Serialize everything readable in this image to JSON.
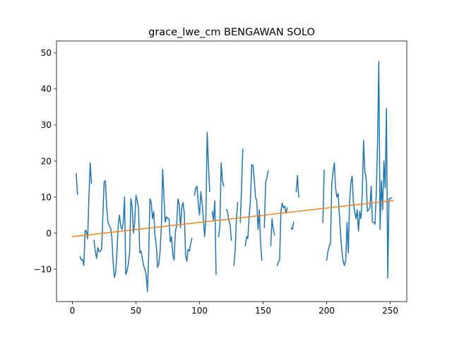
{
  "chart_data": {
    "type": "line",
    "title": "grace_lwe_cm BENGAWAN SOLO",
    "xlabel": "",
    "ylabel": "",
    "xlim": [
      -12.5,
      263
    ],
    "ylim": [
      -19,
      53.3
    ],
    "xticks": [
      0,
      50,
      100,
      150,
      200,
      250
    ],
    "yticks": [
      -10,
      0,
      10,
      20,
      30,
      40,
      50
    ],
    "grid": false,
    "legend": "none",
    "series": [
      {
        "color": "#1f77b4",
        "points": [
          [
            3,
            16.5
          ],
          [
            4,
            10.8
          ],
          null,
          [
            6,
            -6.5
          ],
          [
            7,
            -7.5
          ],
          [
            8,
            -7.3
          ],
          [
            9,
            -9
          ],
          [
            10,
            0.8
          ],
          [
            11,
            0.5
          ],
          [
            12,
            -1.5
          ],
          [
            13,
            10
          ],
          [
            14,
            19.5
          ],
          [
            15,
            13.8
          ],
          null,
          [
            17,
            -2
          ],
          [
            18,
            -5
          ],
          [
            19,
            -7
          ],
          [
            20,
            -4
          ],
          [
            21,
            -5.2
          ],
          [
            22,
            -5
          ],
          [
            23,
            -4.5
          ],
          [
            24,
            5
          ],
          [
            25,
            14.3
          ],
          [
            26,
            14.5
          ],
          [
            27,
            7
          ],
          [
            28,
            3
          ],
          [
            29,
            2
          ],
          [
            30,
            1.5
          ],
          [
            31,
            -1
          ],
          [
            32,
            -8
          ],
          [
            33,
            -12.3
          ],
          [
            34,
            -11
          ],
          [
            35,
            -5.5
          ],
          [
            36,
            2
          ],
          [
            37,
            5
          ],
          [
            38,
            2
          ],
          [
            39,
            1
          ],
          [
            40,
            3
          ],
          [
            41,
            10
          ],
          [
            42,
            -11.5
          ],
          [
            43,
            -10.5
          ],
          [
            44,
            -8.5
          ],
          [
            45,
            -5.5
          ],
          [
            46,
            9.5
          ],
          [
            47,
            7.5
          ],
          [
            48,
            0
          ],
          [
            49,
            3
          ],
          [
            50,
            10.5
          ],
          [
            51,
            9
          ],
          [
            52,
            7
          ],
          [
            53,
            -5.5
          ],
          [
            54,
            -5
          ],
          [
            55,
            -7
          ],
          [
            56,
            -9
          ],
          [
            57,
            -10
          ],
          [
            58,
            -11.5
          ],
          [
            59,
            -16.2
          ],
          [
            60,
            -6
          ],
          [
            61,
            9.5
          ],
          [
            62,
            8.5
          ],
          [
            63,
            4
          ],
          [
            64,
            6
          ],
          [
            65,
            -1
          ],
          [
            66,
            -3.5
          ],
          [
            67,
            -9.5
          ],
          [
            68,
            -8.5
          ],
          [
            69,
            -5
          ],
          [
            70,
            2
          ],
          [
            71,
            17.7
          ],
          [
            72,
            10
          ],
          [
            73,
            3
          ],
          [
            74,
            4.5
          ],
          [
            75,
            4
          ],
          [
            76,
            4
          ],
          [
            77,
            -2.5
          ],
          [
            78,
            -1
          ],
          [
            79,
            -6
          ],
          [
            80,
            -7.5
          ],
          [
            81,
            0.5
          ],
          [
            82,
            2
          ],
          [
            83,
            9.5
          ],
          [
            84,
            8
          ],
          [
            85,
            1.5
          ],
          [
            86,
            7
          ],
          [
            87,
            8.5
          ],
          [
            88,
            5.5
          ],
          [
            89,
            -6
          ],
          [
            90,
            -7.8
          ],
          [
            91,
            -4.5
          ],
          [
            92,
            -5
          ],
          [
            93,
            -3
          ],
          [
            94,
            -1.5
          ],
          null,
          [
            96,
            10.5
          ],
          [
            97,
            12.5
          ],
          [
            98,
            13
          ],
          [
            99,
            8
          ],
          [
            100,
            5
          ],
          [
            101,
            11.5
          ],
          [
            102,
            8.5
          ],
          [
            103,
            4
          ],
          [
            104,
            -1
          ],
          [
            105,
            4
          ],
          [
            106,
            28
          ],
          [
            107,
            19
          ],
          [
            108,
            11.5
          ],
          null,
          [
            110,
            6
          ],
          [
            111,
            3.5
          ],
          [
            112,
            9
          ],
          [
            113,
            -11.5
          ],
          null,
          [
            115,
            -1
          ],
          [
            116,
            2
          ],
          [
            117,
            19.5
          ],
          [
            118,
            14.5
          ],
          [
            119,
            13
          ],
          null,
          [
            121,
            6.5
          ],
          [
            122,
            6
          ],
          [
            123,
            3.5
          ],
          [
            124,
            2.5
          ],
          [
            125,
            -2
          ],
          null,
          [
            127,
            -9
          ],
          [
            128,
            -5
          ],
          [
            129,
            4
          ],
          [
            130,
            8.5
          ],
          null,
          [
            132,
            3
          ],
          [
            133,
            12
          ],
          [
            134,
            23.3
          ],
          null,
          [
            136,
            -3.5
          ],
          [
            137,
            -1
          ],
          [
            138,
            -1.5
          ],
          [
            139,
            4.5
          ],
          [
            140,
            9
          ],
          [
            141,
            19
          ],
          [
            142,
            18.8
          ],
          [
            143,
            15
          ],
          [
            144,
            10
          ],
          [
            145,
            9
          ],
          [
            146,
            1
          ],
          [
            147,
            6.5
          ],
          [
            148,
            -3
          ],
          [
            149,
            -7.5
          ],
          null,
          [
            151,
            1.5
          ],
          [
            152,
            14
          ],
          [
            153,
            15.5
          ],
          [
            154,
            17.3
          ],
          null,
          [
            156,
            -3.5
          ],
          [
            157,
            4
          ],
          [
            158,
            1
          ],
          [
            159,
            -0.5
          ],
          null,
          [
            161,
            -9
          ],
          [
            162,
            -8
          ],
          [
            163,
            -7.5
          ],
          [
            164,
            6
          ],
          [
            165,
            8.3
          ],
          [
            166,
            7
          ],
          [
            167,
            7.5
          ],
          [
            168,
            5.5
          ],
          [
            169,
            7
          ],
          null,
          [
            172,
            1.5
          ],
          [
            173,
            1
          ],
          [
            174,
            3
          ],
          null,
          [
            176,
            11.5
          ],
          [
            177,
            16
          ],
          [
            178,
            10
          ],
          null,
          [
            197,
            3
          ],
          [
            198,
            17.5
          ],
          null,
          [
            200,
            -7.5
          ],
          [
            201,
            -5
          ],
          [
            202,
            -3.5
          ],
          [
            203,
            -3
          ],
          [
            204,
            14
          ],
          [
            205,
            17
          ],
          [
            206,
            19.5
          ],
          [
            207,
            12.5
          ],
          [
            208,
            10
          ],
          [
            209,
            11
          ],
          [
            210,
            5
          ],
          [
            211,
            -1
          ],
          [
            212,
            -5
          ],
          [
            213,
            -8
          ],
          [
            214,
            -9
          ],
          [
            215,
            -7.5
          ],
          [
            216,
            3
          ],
          [
            217,
            -5.5
          ],
          [
            218,
            8.5
          ],
          [
            219,
            14
          ],
          [
            220,
            15.8
          ],
          [
            221,
            8.5
          ],
          [
            222,
            6
          ],
          [
            223,
            4
          ],
          [
            224,
            6.5
          ],
          [
            225,
            0.5
          ],
          [
            226,
            6
          ],
          [
            227,
            4
          ],
          [
            228,
            11
          ],
          [
            229,
            25.7
          ],
          [
            230,
            17
          ],
          [
            231,
            15.5
          ],
          [
            232,
            6
          ],
          [
            233,
            6.5
          ],
          [
            234,
            7
          ],
          [
            235,
            13
          ],
          [
            236,
            3
          ],
          [
            237,
            3
          ],
          [
            238,
            2.5
          ],
          [
            239,
            11
          ],
          [
            240,
            25
          ],
          [
            241,
            47.6
          ],
          [
            242,
            1
          ],
          [
            243,
            14.5
          ],
          [
            244,
            6.5
          ],
          [
            245,
            20
          ],
          [
            246,
            12.5
          ],
          [
            247,
            34.6
          ],
          [
            248,
            -12.5
          ],
          [
            249,
            9.5
          ],
          [
            250,
            9.5
          ],
          [
            251,
            9.8
          ]
        ]
      },
      {
        "color": "#ff7f0e",
        "points": [
          [
            0,
            -1
          ],
          [
            252,
            9
          ]
        ]
      }
    ]
  }
}
